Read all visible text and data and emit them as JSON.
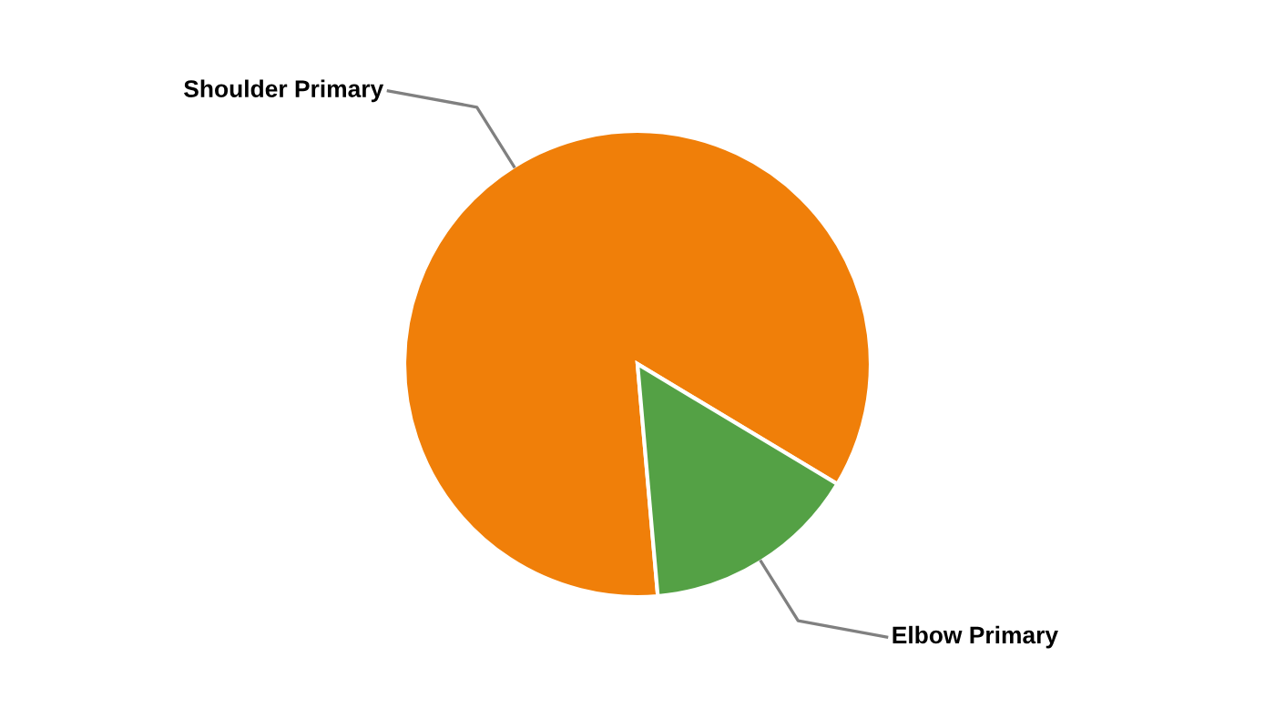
{
  "chart_data": {
    "type": "pie",
    "categories": [
      "Shoulder Primary",
      "Elbow Primary"
    ],
    "values": [
      85,
      15
    ],
    "colors": [
      "#f07f09",
      "#54a145"
    ],
    "legend": false
  }
}
